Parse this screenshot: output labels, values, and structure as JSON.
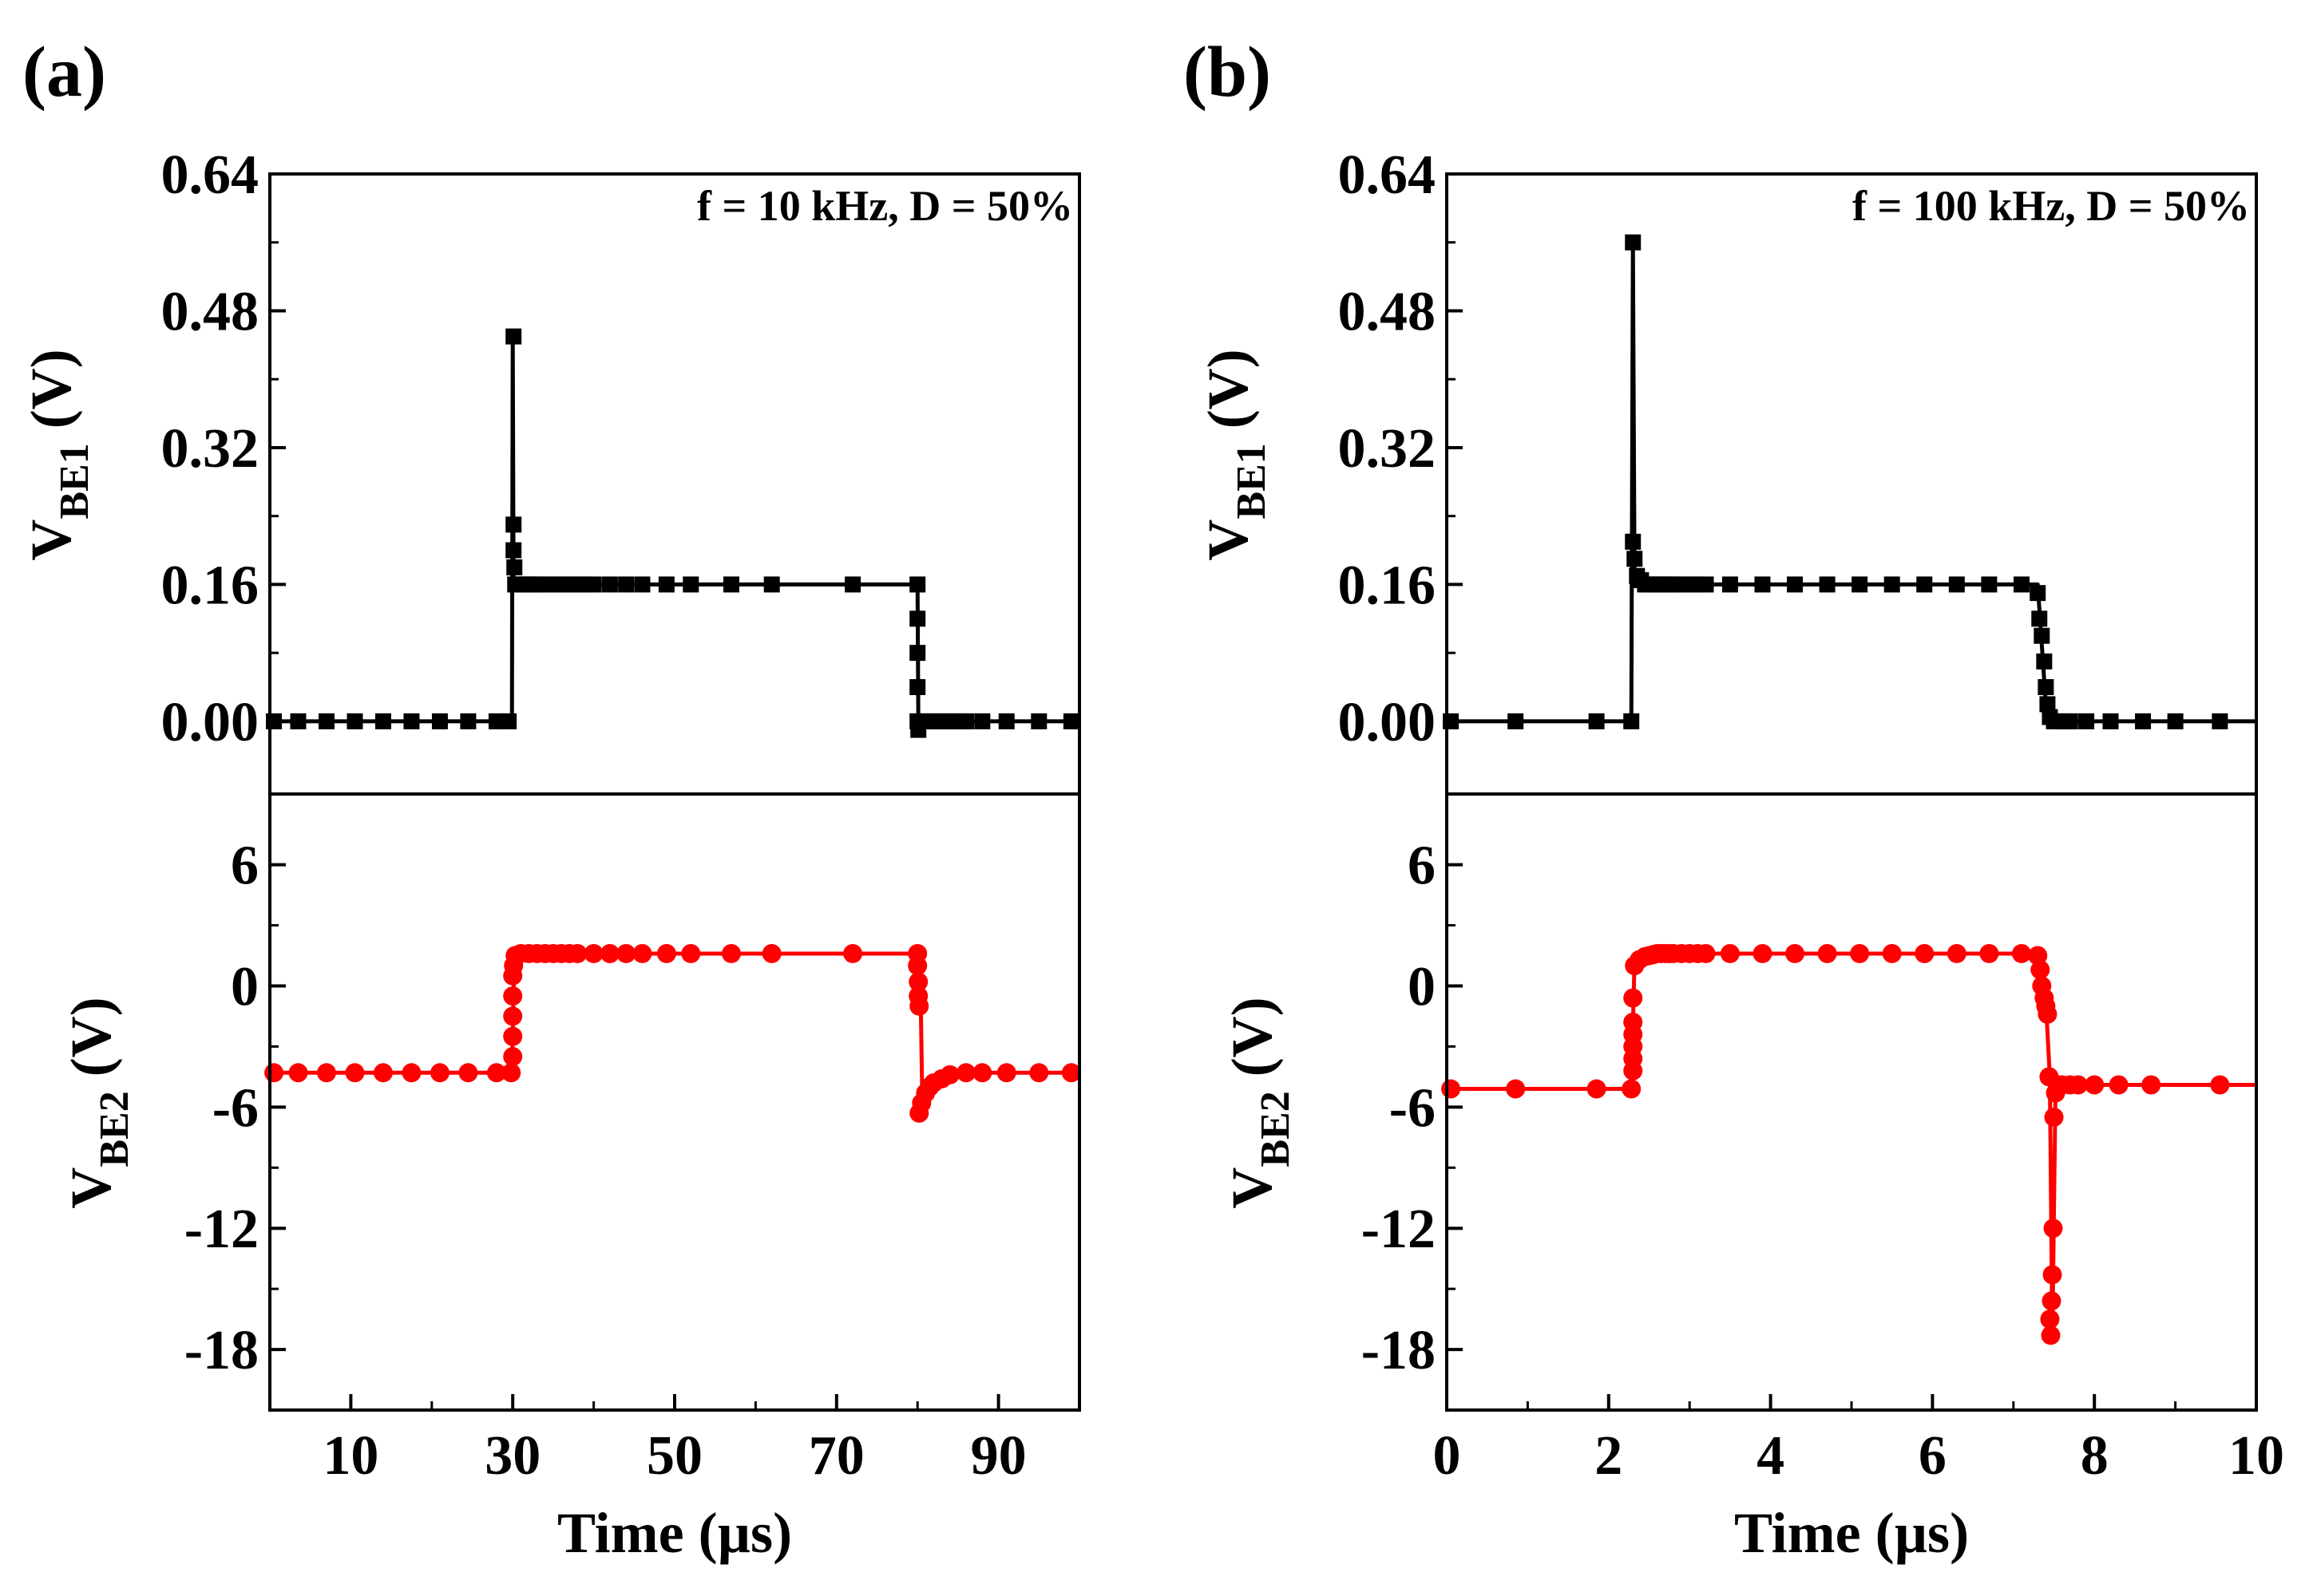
{
  "chart_data": [
    {
      "type": "line",
      "panel": "(a)",
      "annotation": "f = 10 kHz, D = 50%",
      "xlabel": "Time (µs)",
      "xlim": [
        0,
        100
      ],
      "xticks": [
        "10",
        "30",
        "50",
        "70",
        "90"
      ],
      "top": {
        "ylabel_main": "V",
        "ylabel_sub": "BE1",
        "ylabel_unit": " (V)",
        "ylim": [
          -0.085,
          0.64
        ],
        "yticks": [
          "0.00",
          "0.16",
          "0.32",
          "0.48",
          "0.64"
        ],
        "color": "#000000",
        "marker": "square",
        "line": [
          [
            0,
            0
          ],
          [
            29.9,
            0
          ],
          [
            30.0,
            0.45
          ],
          [
            30.1,
            0.16
          ],
          [
            80.0,
            0.16
          ],
          [
            80.1,
            0.0
          ],
          [
            100,
            0.0
          ]
        ],
        "markers": [
          [
            0.5,
            0
          ],
          [
            3.5,
            0
          ],
          [
            7,
            0
          ],
          [
            10.5,
            0
          ],
          [
            14,
            0
          ],
          [
            17.5,
            0
          ],
          [
            21,
            0
          ],
          [
            24.5,
            0
          ],
          [
            28,
            0
          ],
          [
            29.5,
            0
          ],
          [
            30.1,
            0.45
          ],
          [
            30.1,
            0.2
          ],
          [
            30.1,
            0.23
          ],
          [
            30.2,
            0.18
          ],
          [
            30.3,
            0.16
          ],
          [
            30.6,
            0.16
          ],
          [
            31,
            0.16
          ],
          [
            31.5,
            0.16
          ],
          [
            32,
            0.16
          ],
          [
            32.5,
            0.16
          ],
          [
            33,
            0.16
          ],
          [
            34,
            0.16
          ],
          [
            35,
            0.16
          ],
          [
            36,
            0.16
          ],
          [
            37,
            0.16
          ],
          [
            38,
            0.16
          ],
          [
            39,
            0.16
          ],
          [
            40,
            0.16
          ],
          [
            42,
            0.16
          ],
          [
            44,
            0.16
          ],
          [
            46,
            0.16
          ],
          [
            49,
            0.16
          ],
          [
            52,
            0.16
          ],
          [
            57,
            0.16
          ],
          [
            62,
            0.16
          ],
          [
            72,
            0.16
          ],
          [
            80,
            0.16
          ],
          [
            80,
            0.12
          ],
          [
            80,
            0.08
          ],
          [
            80,
            0.04
          ],
          [
            80,
            0.0
          ],
          [
            80.1,
            -0.01
          ],
          [
            81,
            0
          ],
          [
            82,
            0
          ],
          [
            83,
            0
          ],
          [
            84,
            0
          ],
          [
            85,
            0
          ],
          [
            86,
            0
          ],
          [
            88,
            0
          ],
          [
            91,
            0
          ],
          [
            95,
            0
          ],
          [
            99,
            0
          ]
        ]
      },
      "bottom": {
        "ylabel_main": "V",
        "ylabel_sub": "BE2",
        "ylabel_unit": " (V)",
        "ylim": [
          -21,
          9.5
        ],
        "yticks": [
          "6",
          "0",
          "-6",
          "-12",
          "-18"
        ],
        "color": "#ff0000",
        "marker": "circle",
        "line": [
          [
            0,
            -4.3
          ],
          [
            29.9,
            -4.3
          ],
          [
            30.2,
            1.6
          ],
          [
            80.0,
            1.6
          ],
          [
            80.4,
            -1.0
          ],
          [
            80.6,
            -6.0
          ],
          [
            82,
            -5.0
          ],
          [
            84,
            -4.5
          ],
          [
            88,
            -4.3
          ],
          [
            100,
            -4.3
          ]
        ],
        "markers": [
          [
            0.5,
            -4.3
          ],
          [
            3.5,
            -4.3
          ],
          [
            7,
            -4.3
          ],
          [
            10.5,
            -4.3
          ],
          [
            14,
            -4.3
          ],
          [
            17.5,
            -4.3
          ],
          [
            21,
            -4.3
          ],
          [
            24.5,
            -4.3
          ],
          [
            28,
            -4.3
          ],
          [
            29.8,
            -4.3
          ],
          [
            30,
            -3.5
          ],
          [
            30,
            -2.5
          ],
          [
            30,
            -1.5
          ],
          [
            30,
            -0.5
          ],
          [
            30,
            0.5
          ],
          [
            30.1,
            1.0
          ],
          [
            30.3,
            1.5
          ],
          [
            31,
            1.6
          ],
          [
            32,
            1.6
          ],
          [
            33,
            1.6
          ],
          [
            34,
            1.6
          ],
          [
            35,
            1.6
          ],
          [
            36,
            1.6
          ],
          [
            37,
            1.6
          ],
          [
            38,
            1.6
          ],
          [
            40,
            1.6
          ],
          [
            42,
            1.6
          ],
          [
            44,
            1.6
          ],
          [
            46,
            1.6
          ],
          [
            49,
            1.6
          ],
          [
            52,
            1.6
          ],
          [
            57,
            1.6
          ],
          [
            62,
            1.6
          ],
          [
            72,
            1.6
          ],
          [
            80,
            1.6
          ],
          [
            80,
            1.0
          ],
          [
            80.1,
            0.2
          ],
          [
            80.1,
            -0.5
          ],
          [
            80.2,
            -1.0
          ],
          [
            80.2,
            -6.3
          ],
          [
            80.5,
            -5.8
          ],
          [
            81,
            -5.3
          ],
          [
            81.5,
            -5.0
          ],
          [
            82,
            -4.8
          ],
          [
            83,
            -4.6
          ],
          [
            84,
            -4.4
          ],
          [
            86,
            -4.3
          ],
          [
            88,
            -4.3
          ],
          [
            91,
            -4.3
          ],
          [
            95,
            -4.3
          ],
          [
            99,
            -4.3
          ]
        ]
      }
    },
    {
      "type": "line",
      "panel": "(b)",
      "annotation": "f = 100 kHz, D = 50%",
      "xlabel": "Time (µs)",
      "xlim": [
        0,
        10
      ],
      "xticks": [
        "0",
        "2",
        "4",
        "6",
        "8",
        "10"
      ],
      "top": {
        "ylabel_main": "V",
        "ylabel_sub": "BE1",
        "ylabel_unit": " (V)",
        "ylim": [
          -0.085,
          0.64
        ],
        "yticks": [
          "0.00",
          "0.16",
          "0.32",
          "0.48",
          "0.64"
        ],
        "color": "#000000",
        "marker": "square",
        "line": [
          [
            0,
            0
          ],
          [
            2.28,
            0
          ],
          [
            2.3,
            0.56
          ],
          [
            2.32,
            0.17
          ],
          [
            2.5,
            0.16
          ],
          [
            7.3,
            0.16
          ],
          [
            7.4,
            0.02
          ],
          [
            7.45,
            0.0
          ],
          [
            10,
            0.0
          ]
        ],
        "markers": [
          [
            0.05,
            0
          ],
          [
            0.85,
            0
          ],
          [
            1.85,
            0
          ],
          [
            2.28,
            0
          ],
          [
            2.3,
            0.56
          ],
          [
            2.3,
            0.21
          ],
          [
            2.32,
            0.19
          ],
          [
            2.35,
            0.17
          ],
          [
            2.4,
            0.165
          ],
          [
            2.45,
            0.16
          ],
          [
            2.5,
            0.16
          ],
          [
            2.55,
            0.16
          ],
          [
            2.6,
            0.16
          ],
          [
            2.65,
            0.16
          ],
          [
            2.7,
            0.16
          ],
          [
            2.75,
            0.16
          ],
          [
            2.8,
            0.16
          ],
          [
            2.9,
            0.16
          ],
          [
            3.0,
            0.16
          ],
          [
            3.1,
            0.16
          ],
          [
            3.2,
            0.16
          ],
          [
            3.5,
            0.16
          ],
          [
            3.9,
            0.16
          ],
          [
            4.3,
            0.16
          ],
          [
            4.7,
            0.16
          ],
          [
            5.1,
            0.16
          ],
          [
            5.5,
            0.16
          ],
          [
            5.9,
            0.16
          ],
          [
            6.3,
            0.16
          ],
          [
            6.7,
            0.16
          ],
          [
            7.1,
            0.16
          ],
          [
            7.3,
            0.15
          ],
          [
            7.32,
            0.12
          ],
          [
            7.35,
            0.1
          ],
          [
            7.38,
            0.07
          ],
          [
            7.4,
            0.04
          ],
          [
            7.42,
            0.02
          ],
          [
            7.45,
            0.005
          ],
          [
            7.5,
            0
          ],
          [
            7.6,
            0
          ],
          [
            7.7,
            0
          ],
          [
            7.9,
            0
          ],
          [
            8.2,
            0
          ],
          [
            8.6,
            0
          ],
          [
            9.0,
            0
          ],
          [
            9.55,
            0
          ]
        ]
      },
      "bottom": {
        "ylabel_main": "V",
        "ylabel_sub": "BE2",
        "ylabel_unit": " (V)",
        "ylim": [
          -21,
          9.5
        ],
        "yticks": [
          "6",
          "0",
          "-6",
          "-12",
          "-18"
        ],
        "color": "#ff0000",
        "marker": "circle",
        "line": [
          [
            0,
            -5.1
          ],
          [
            2.28,
            -5.1
          ],
          [
            2.32,
            1.2
          ],
          [
            2.6,
            1.6
          ],
          [
            7.3,
            1.6
          ],
          [
            7.4,
            -0.8
          ],
          [
            7.45,
            -4.5
          ],
          [
            7.48,
            -17.5
          ],
          [
            7.52,
            -5.0
          ],
          [
            7.6,
            -4.9
          ],
          [
            10,
            -4.9
          ]
        ],
        "markers": [
          [
            0.05,
            -5.1
          ],
          [
            0.85,
            -5.1
          ],
          [
            1.85,
            -5.1
          ],
          [
            2.28,
            -5.1
          ],
          [
            2.3,
            -4.2
          ],
          [
            2.3,
            -3.6
          ],
          [
            2.3,
            -3.0
          ],
          [
            2.3,
            -2.4
          ],
          [
            2.3,
            -1.8
          ],
          [
            2.3,
            -0.6
          ],
          [
            2.32,
            1.0
          ],
          [
            2.38,
            1.3
          ],
          [
            2.45,
            1.45
          ],
          [
            2.5,
            1.5
          ],
          [
            2.55,
            1.55
          ],
          [
            2.6,
            1.6
          ],
          [
            2.65,
            1.6
          ],
          [
            2.7,
            1.6
          ],
          [
            2.75,
            1.6
          ],
          [
            2.8,
            1.6
          ],
          [
            2.9,
            1.6
          ],
          [
            3.0,
            1.6
          ],
          [
            3.1,
            1.6
          ],
          [
            3.2,
            1.6
          ],
          [
            3.5,
            1.6
          ],
          [
            3.9,
            1.6
          ],
          [
            4.3,
            1.6
          ],
          [
            4.7,
            1.6
          ],
          [
            5.1,
            1.6
          ],
          [
            5.5,
            1.6
          ],
          [
            5.9,
            1.6
          ],
          [
            6.3,
            1.6
          ],
          [
            6.7,
            1.6
          ],
          [
            7.1,
            1.6
          ],
          [
            7.3,
            1.5
          ],
          [
            7.33,
            0.8
          ],
          [
            7.35,
            0.0
          ],
          [
            7.38,
            -0.6
          ],
          [
            7.4,
            -1.0
          ],
          [
            7.42,
            -1.4
          ],
          [
            7.44,
            -4.5
          ],
          [
            7.45,
            -16.5
          ],
          [
            7.46,
            -17.3
          ],
          [
            7.47,
            -15.6
          ],
          [
            7.48,
            -14.3
          ],
          [
            7.49,
            -12.0
          ],
          [
            7.5,
            -6.5
          ],
          [
            7.52,
            -5.3
          ],
          [
            7.55,
            -4.9
          ],
          [
            7.6,
            -4.9
          ],
          [
            7.7,
            -4.9
          ],
          [
            7.8,
            -4.9
          ],
          [
            8.0,
            -4.9
          ],
          [
            8.3,
            -4.9
          ],
          [
            8.7,
            -4.9
          ],
          [
            9.55,
            -4.9
          ]
        ]
      }
    }
  ]
}
